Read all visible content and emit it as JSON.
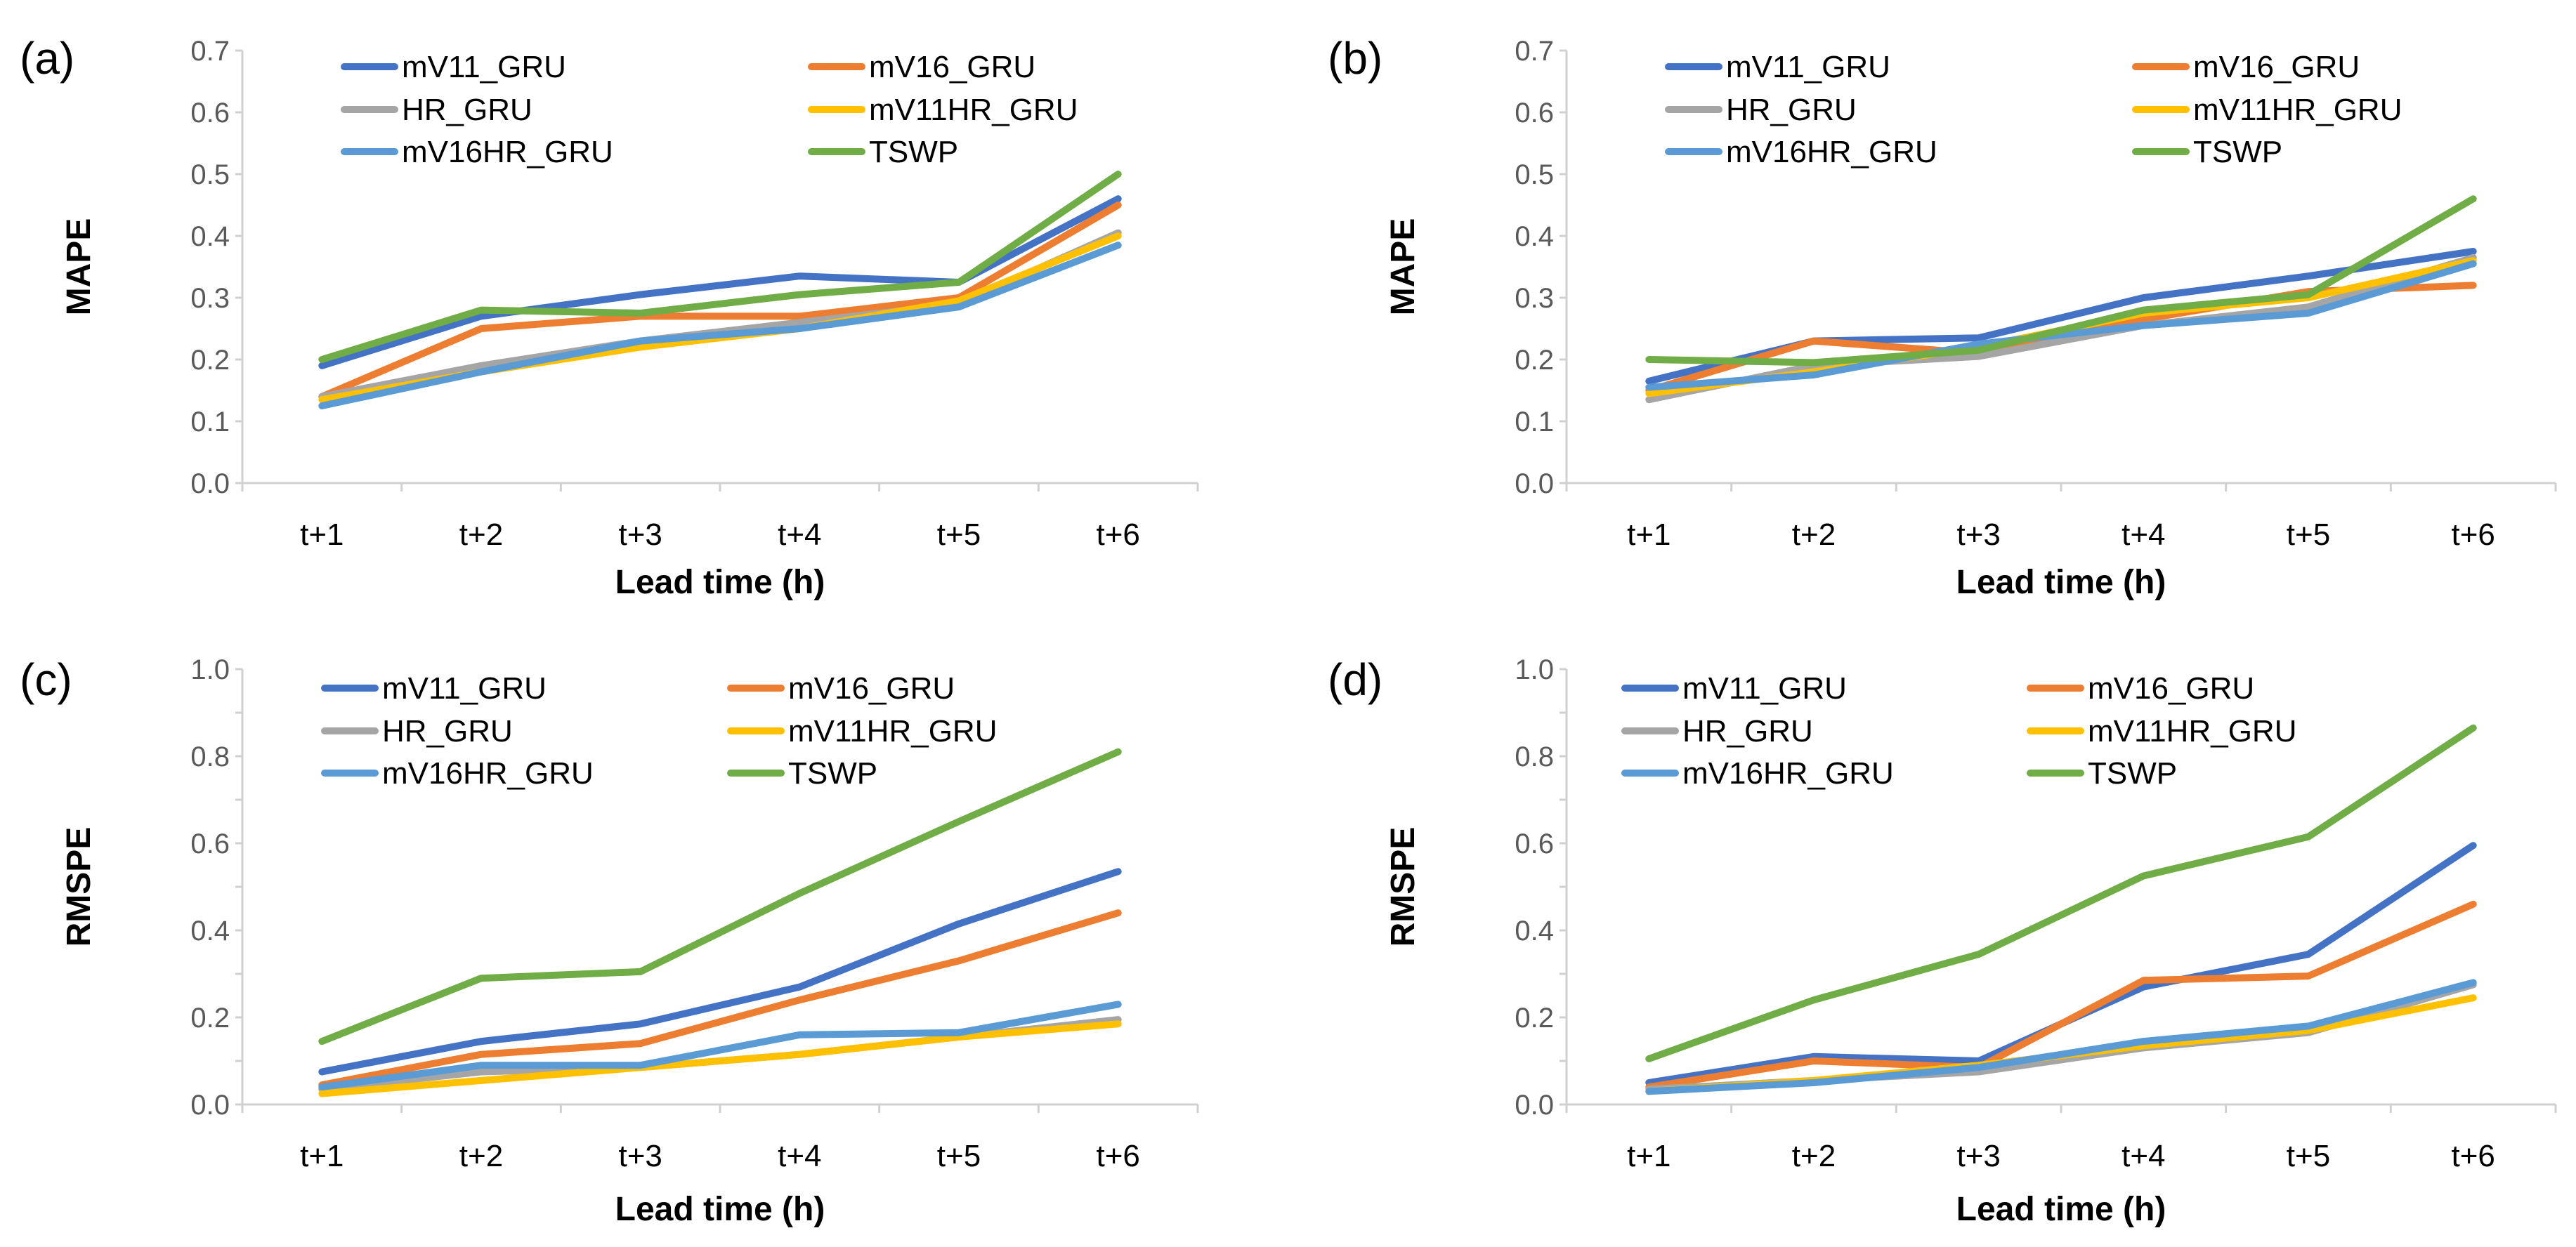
{
  "colors": {
    "mV11_GRU": "#4472C4",
    "mV16_GRU": "#ED7D31",
    "HR_GRU": "#A5A5A5",
    "mV11HR_GRU": "#FFC000",
    "mV16HR_GRU": "#5B9BD5",
    "TSWP": "#70AD47"
  },
  "chart_data": [
    {
      "panel": "(a)",
      "type": "line",
      "categories": [
        "t+1",
        "t+2",
        "t+3",
        "t+4",
        "t+5",
        "t+6"
      ],
      "xlabel": "Lead time (h)",
      "ylabel": "MAPE",
      "ylim": [
        0,
        0.7
      ],
      "ytick_step": 0.1,
      "yticks": [
        "0.0",
        "0.1",
        "0.2",
        "0.3",
        "0.4",
        "0.5",
        "0.6",
        "0.7"
      ],
      "series": [
        {
          "name": "mV11_GRU",
          "values": [
            0.19,
            0.27,
            0.305,
            0.335,
            0.325,
            0.46
          ]
        },
        {
          "name": "mV16_GRU",
          "values": [
            0.14,
            0.25,
            0.27,
            0.27,
            0.3,
            0.45
          ]
        },
        {
          "name": "HR_GRU",
          "values": [
            0.14,
            0.19,
            0.23,
            0.26,
            0.29,
            0.405
          ]
        },
        {
          "name": "mV11HR_GRU",
          "values": [
            0.135,
            0.18,
            0.22,
            0.25,
            0.295,
            0.4
          ]
        },
        {
          "name": "mV16HR_GRU",
          "values": [
            0.125,
            0.18,
            0.23,
            0.25,
            0.285,
            0.385
          ]
        },
        {
          "name": "TSWP",
          "values": [
            0.2,
            0.28,
            0.275,
            0.305,
            0.325,
            0.5
          ]
        }
      ]
    },
    {
      "panel": "(b)",
      "type": "line",
      "categories": [
        "t+1",
        "t+2",
        "t+3",
        "t+4",
        "t+5",
        "t+6"
      ],
      "xlabel": "Lead time (h)",
      "ylabel": "MAPE",
      "ylim": [
        0,
        0.7
      ],
      "ytick_step": 0.1,
      "yticks": [
        "0.0",
        "0.1",
        "0.2",
        "0.3",
        "0.4",
        "0.5",
        "0.6",
        "0.7"
      ],
      "series": [
        {
          "name": "mV11_GRU",
          "values": [
            0.165,
            0.23,
            0.235,
            0.3,
            0.335,
            0.375
          ]
        },
        {
          "name": "mV16_GRU",
          "values": [
            0.15,
            0.23,
            0.21,
            0.265,
            0.31,
            0.32
          ]
        },
        {
          "name": "HR_GRU",
          "values": [
            0.135,
            0.19,
            0.205,
            0.255,
            0.285,
            0.365
          ]
        },
        {
          "name": "mV11HR_GRU",
          "values": [
            0.145,
            0.18,
            0.22,
            0.275,
            0.3,
            0.36
          ]
        },
        {
          "name": "mV16HR_GRU",
          "values": [
            0.155,
            0.175,
            0.225,
            0.255,
            0.275,
            0.355
          ]
        },
        {
          "name": "TSWP",
          "values": [
            0.2,
            0.195,
            0.215,
            0.28,
            0.305,
            0.46
          ]
        }
      ]
    },
    {
      "panel": "(c)",
      "type": "line",
      "categories": [
        "t+1",
        "t+2",
        "t+3",
        "t+4",
        "t+5",
        "t+6"
      ],
      "xlabel": "Lead time (h)",
      "ylabel": "RMSPE",
      "ylim": [
        0,
        1.0
      ],
      "ytick_step": 0.1,
      "yticks": [
        "0.0",
        "0.2",
        "0.4",
        "0.6",
        "0.8",
        "1.0"
      ],
      "series": [
        {
          "name": "mV11_GRU",
          "values": [
            0.075,
            0.145,
            0.185,
            0.27,
            0.415,
            0.535
          ]
        },
        {
          "name": "mV16_GRU",
          "values": [
            0.045,
            0.115,
            0.14,
            0.24,
            0.33,
            0.44
          ]
        },
        {
          "name": "HR_GRU",
          "values": [
            0.035,
            0.075,
            0.085,
            0.115,
            0.155,
            0.195
          ]
        },
        {
          "name": "mV11HR_GRU",
          "values": [
            0.025,
            0.055,
            0.085,
            0.115,
            0.155,
            0.185
          ]
        },
        {
          "name": "mV16HR_GRU",
          "values": [
            0.04,
            0.09,
            0.09,
            0.16,
            0.165,
            0.23
          ]
        },
        {
          "name": "TSWP",
          "values": [
            0.145,
            0.29,
            0.305,
            0.485,
            0.65,
            0.81
          ]
        }
      ]
    },
    {
      "panel": "(d)",
      "type": "line",
      "categories": [
        "t+1",
        "t+2",
        "t+3",
        "t+4",
        "t+5",
        "t+6"
      ],
      "xlabel": "Lead time (h)",
      "ylabel": "RMSPE",
      "ylim": [
        0,
        1.0
      ],
      "ytick_step": 0.1,
      "yticks": [
        "0.0",
        "0.2",
        "0.4",
        "0.6",
        "0.8",
        "1.0"
      ],
      "series": [
        {
          "name": "mV11_GRU",
          "values": [
            0.05,
            0.11,
            0.1,
            0.27,
            0.345,
            0.595
          ]
        },
        {
          "name": "mV16_GRU",
          "values": [
            0.04,
            0.1,
            0.085,
            0.285,
            0.295,
            0.46
          ]
        },
        {
          "name": "HR_GRU",
          "values": [
            0.035,
            0.055,
            0.075,
            0.13,
            0.165,
            0.275
          ]
        },
        {
          "name": "mV11HR_GRU",
          "values": [
            0.03,
            0.055,
            0.09,
            0.135,
            0.17,
            0.245
          ]
        },
        {
          "name": "mV16HR_GRU",
          "values": [
            0.03,
            0.05,
            0.085,
            0.145,
            0.18,
            0.28
          ]
        },
        {
          "name": "TSWP",
          "values": [
            0.105,
            0.24,
            0.345,
            0.525,
            0.615,
            0.865
          ]
        }
      ]
    }
  ]
}
